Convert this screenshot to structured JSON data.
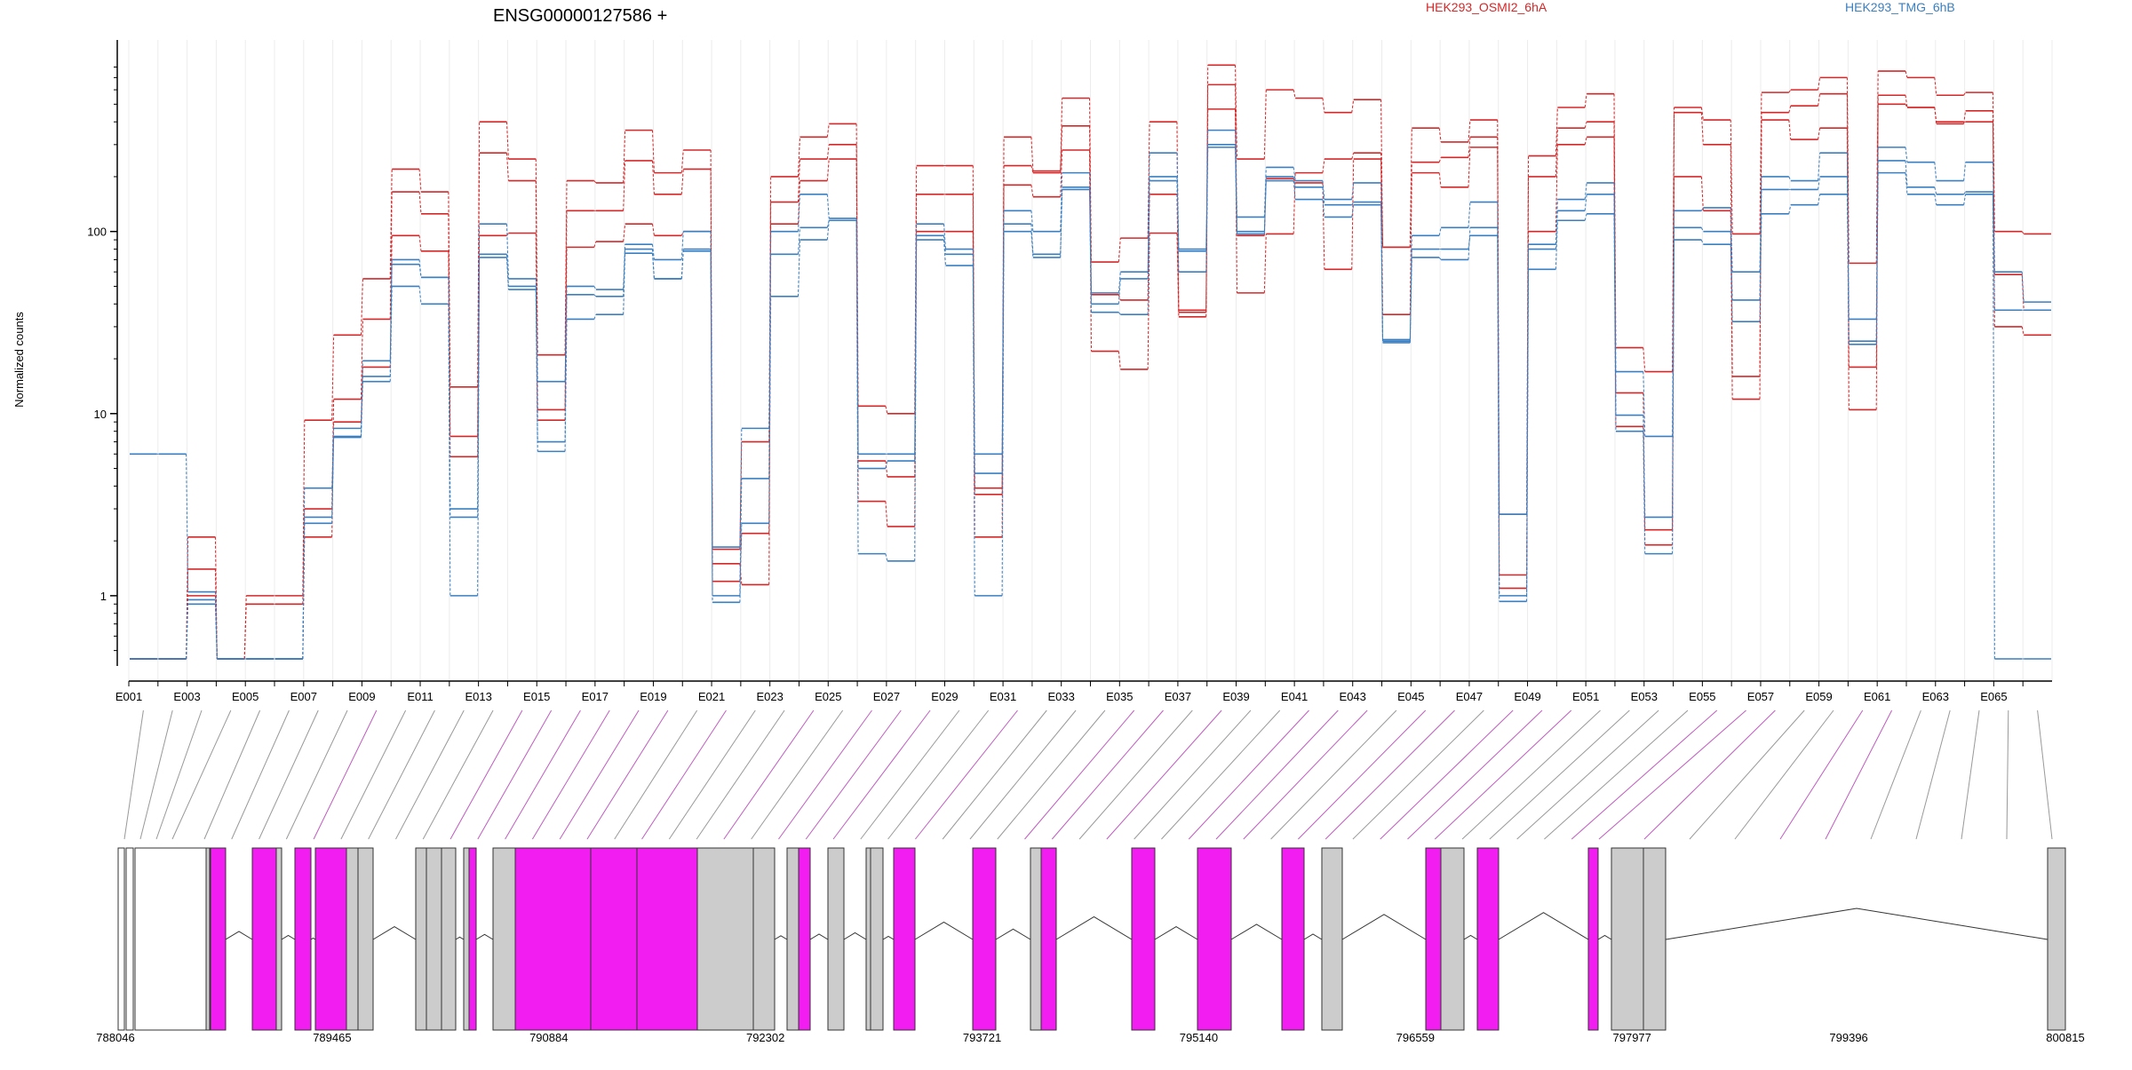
{
  "chart_data": {
    "type": "line",
    "title": "ENSG00000127586 +",
    "ylabel": "Normalized counts",
    "xlabel": "",
    "y_scale": "log",
    "ylim": [
      0.45,
      900
    ],
    "y_ticks": [
      1,
      10,
      100
    ],
    "y_tick_labels": [
      "1",
      "10",
      "100"
    ],
    "categories": [
      "E001",
      "E002",
      "E003",
      "E004",
      "E005",
      "E006",
      "E007",
      "E008",
      "E009",
      "E010",
      "E011",
      "E012",
      "E013",
      "E014",
      "E015",
      "E016",
      "E017",
      "E018",
      "E019",
      "E020",
      "E021",
      "E022",
      "E023",
      "E024",
      "E025",
      "E026",
      "E027",
      "E028",
      "E029",
      "E030",
      "E031",
      "E032",
      "E033",
      "E034",
      "E035",
      "E036",
      "E037",
      "E038",
      "E039",
      "E040",
      "E041",
      "E042",
      "E043",
      "E044",
      "E045",
      "E046",
      "E047",
      "E048",
      "E049",
      "E050",
      "E051",
      "E052",
      "E053",
      "E054",
      "E055",
      "E056",
      "E057",
      "E058",
      "E059",
      "E060",
      "E061",
      "E062",
      "E063",
      "E064",
      "E065",
      "E066"
    ],
    "x_tick_labels": [
      "E001",
      "E003",
      "E005",
      "E007",
      "E009",
      "E011",
      "E013",
      "E015",
      "E017",
      "E019",
      "E021",
      "E023",
      "E025",
      "E027",
      "E029",
      "E031",
      "E033",
      "E035",
      "E037",
      "E039",
      "E041",
      "E043",
      "E045",
      "E047",
      "E049",
      "E051",
      "E053",
      "E055",
      "E057",
      "E059",
      "E061",
      "E063",
      "E065"
    ],
    "legend": [
      {
        "name": "HEK293_OSMI2_6hA",
        "color": "#d62728"
      },
      {
        "name": "HEK293_TMG_6hB",
        "color": "#3a7fc1"
      }
    ],
    "series": [
      {
        "name": "HEK293_OSMI2_6hA",
        "color": "#d62728",
        "values": [
          0.45,
          0.45,
          2.1,
          0.45,
          1.0,
          1.0,
          9.2,
          27,
          55,
          220,
          165,
          14,
          400,
          250,
          21,
          190,
          185,
          360,
          210,
          280,
          1.8,
          7.0,
          200,
          330,
          390,
          11,
          10,
          230,
          230,
          3.9,
          330,
          215,
          540,
          68,
          92,
          400,
          37,
          820,
          250,
          600,
          540,
          450,
          530,
          82,
          370,
          310,
          410,
          2.8,
          260,
          480,
          570,
          23,
          17,
          480,
          410,
          97,
          580,
          600,
          700,
          67,
          760,
          700,
          560,
          580,
          100,
          97
        ]
      },
      {
        "name": "HEK293_OSMI2_6hA",
        "color": "#d62728",
        "values": [
          0.45,
          0.45,
          1.4,
          0.45,
          0.9,
          0.9,
          3.0,
          12,
          33,
          165,
          125,
          7.5,
          270,
          190,
          10.5,
          130,
          130,
          245,
          160,
          220,
          1.2,
          2.2,
          145,
          250,
          300,
          5.5,
          4.5,
          160,
          160,
          2.1,
          230,
          210,
          380,
          45,
          42,
          160,
          36,
          640,
          95,
          195,
          185,
          62,
          250,
          82,
          240,
          255,
          330,
          1.3,
          200,
          370,
          400,
          13,
          2.3,
          450,
          300,
          16,
          450,
          490,
          570,
          18,
          560,
          480,
          400,
          400,
          58,
          37
        ]
      },
      {
        "name": "HEK293_OSMI2_6hA",
        "color": "#d62728",
        "values": [
          0.45,
          0.45,
          1.0,
          0.45,
          0.45,
          0.45,
          2.1,
          9,
          18,
          95,
          78,
          5.8,
          95,
          98,
          9.2,
          82,
          88,
          110,
          95,
          100,
          1.5,
          1.15,
          110,
          190,
          250,
          3.3,
          2.4,
          100,
          100,
          3.6,
          180,
          155,
          280,
          22,
          17.5,
          98,
          34,
          470,
          46,
          97,
          210,
          250,
          270,
          35,
          210,
          175,
          290,
          1.1,
          100,
          300,
          330,
          8.5,
          1.9,
          200,
          130,
          12,
          410,
          320,
          370,
          10.5,
          500,
          480,
          390,
          460,
          30,
          27
        ]
      },
      {
        "name": "HEK293_TMG_6hB",
        "color": "#3a7fc1",
        "values": [
          6.0,
          6.0,
          1.05,
          0.45,
          0.45,
          0.45,
          3.9,
          8.3,
          19.5,
          70,
          56,
          3.0,
          110,
          55,
          15,
          50,
          48,
          85,
          70,
          100,
          1.85,
          8.3,
          100,
          160,
          118,
          6.0,
          6.0,
          110,
          80,
          6.0,
          130,
          100,
          210,
          46,
          60,
          270,
          80,
          360,
          120,
          225,
          190,
          150,
          185,
          25.5,
          95,
          105,
          145,
          2.8,
          85,
          150,
          185,
          17,
          7.5,
          130,
          135,
          60,
          200,
          190,
          270,
          33,
          290,
          240,
          190,
          240,
          60,
          41
        ]
      },
      {
        "name": "HEK293_TMG_6hB",
        "color": "#3a7fc1",
        "values": [
          0.45,
          0.45,
          0.95,
          0.45,
          0.45,
          0.45,
          2.7,
          7.5,
          16,
          66,
          56,
          2.7,
          75,
          50,
          7,
          45,
          44,
          80,
          55,
          80,
          1.0,
          4.4,
          75,
          105,
          115,
          5.0,
          5.5,
          95,
          75,
          4.7,
          110,
          75,
          175,
          40,
          55,
          200,
          78,
          300,
          100,
          200,
          175,
          140,
          145,
          25,
          80,
          80,
          95,
          1.0,
          80,
          130,
          160,
          9.8,
          2.7,
          105,
          100,
          42,
          170,
          170,
          200,
          25,
          245,
          175,
          160,
          165,
          37,
          37
        ]
      },
      {
        "name": "HEK293_TMG_6hB",
        "color": "#3a7fc1",
        "values": [
          0.45,
          0.45,
          0.9,
          0.45,
          0.45,
          0.45,
          2.5,
          7.4,
          15,
          50,
          40,
          1.0,
          72,
          48,
          6.2,
          33,
          35,
          76,
          55,
          78,
          0.92,
          2.5,
          44,
          90,
          115,
          1.7,
          1.55,
          90,
          65,
          1.0,
          100,
          72,
          170,
          36,
          35,
          190,
          60,
          290,
          97,
          190,
          150,
          120,
          140,
          24.5,
          72,
          70,
          105,
          0.93,
          62,
          115,
          125,
          8.0,
          1.7,
          90,
          85,
          32,
          125,
          140,
          160,
          24,
          210,
          160,
          140,
          160,
          0.45,
          0.45
        ]
      }
    ],
    "coord_ticks": [
      "788046",
      "789465",
      "790884",
      "792302",
      "793721",
      "795140",
      "796559",
      "797977",
      "799396",
      "800815"
    ]
  }
}
